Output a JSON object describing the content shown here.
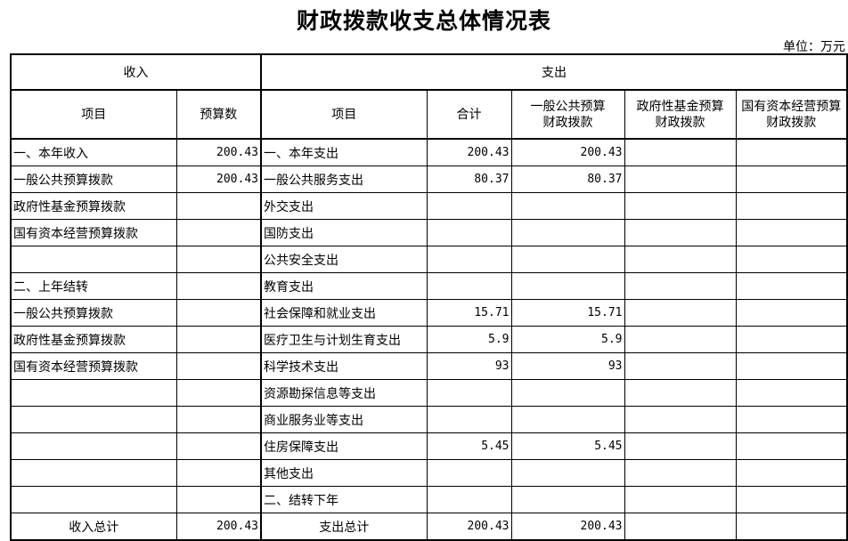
{
  "title": "财政拨款收支总体情况表",
  "unit": "单位：万元",
  "header": {
    "income": "收入",
    "expense": "支出",
    "cols": [
      "项目",
      "预算数",
      "项目",
      "合计",
      "一般公共预算\n财政拨款",
      "政府性基金预算\n财政拨款",
      "国有资本经营预算\n财政拨款"
    ]
  },
  "rows": [
    [
      "一、本年收入",
      "200.43",
      "一、本年支出",
      "200.43",
      "200.43",
      "",
      ""
    ],
    [
      "一般公共预算拨款",
      "200.43",
      "一般公共服务支出",
      "80.37",
      "80.37",
      "",
      ""
    ],
    [
      "政府性基金预算拨款",
      "",
      "外交支出",
      "",
      "",
      "",
      ""
    ],
    [
      "国有资本经营预算拨款",
      "",
      "国防支出",
      "",
      "",
      "",
      ""
    ],
    [
      "",
      "",
      "公共安全支出",
      "",
      "",
      "",
      ""
    ],
    [
      "二、上年结转",
      "",
      "教育支出",
      "",
      "",
      "",
      ""
    ],
    [
      "一般公共预算拨款",
      "",
      "社会保障和就业支出",
      "15.71",
      "15.71",
      "",
      ""
    ],
    [
      "政府性基金预算拨款",
      "",
      "医疗卫生与计划生育支出",
      "5.9",
      "5.9",
      "",
      ""
    ],
    [
      "国有资本经营预算拨款",
      "",
      "科学技术支出",
      "93",
      "93",
      "",
      ""
    ],
    [
      "",
      "",
      "资源勘探信息等支出",
      "",
      "",
      "",
      ""
    ],
    [
      "",
      "",
      "商业服务业等支出",
      "",
      "",
      "",
      ""
    ],
    [
      "",
      "",
      "住房保障支出",
      "5.45",
      "5.45",
      "",
      ""
    ],
    [
      "",
      "",
      "其他支出",
      "",
      "",
      "",
      ""
    ],
    [
      "",
      "",
      "二、结转下年",
      "",
      "",
      "",
      ""
    ]
  ],
  "total": [
    "收入总计",
    "200.43",
    "支出总计",
    "200.43",
    "200.43",
    "",
    ""
  ]
}
